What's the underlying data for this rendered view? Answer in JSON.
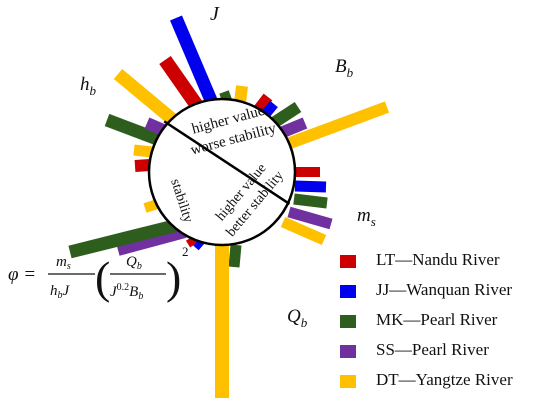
{
  "axes": {
    "J": "J",
    "Bb": "Bb",
    "ms": "ms",
    "Qb": "Qb",
    "hb": "hb"
  },
  "center_text": {
    "upper_line1": "higher value",
    "upper_line2": "worse stability",
    "lower_line1": "higher value",
    "lower_line2": "better stability",
    "left": "stability"
  },
  "formula": {
    "lhs": "φ",
    "numerator": "ms",
    "denominator": "hbJ",
    "inner_numerator": "Qb",
    "inner_denominator": "J0.2Bb",
    "exponent": "2"
  },
  "colors": {
    "LT": "#cc0000",
    "JJ": "#0000ee",
    "MK": "#2e5e1e",
    "SS": "#7030a0",
    "DT": "#ffc000"
  },
  "legend": [
    {
      "key": "LT",
      "label": "LT—Nandu River"
    },
    {
      "key": "JJ",
      "label": "JJ—Wanquan River"
    },
    {
      "key": "MK",
      "label": "MK—Pearl River"
    },
    {
      "key": "SS",
      "label": "SS—Pearl River"
    },
    {
      "key": "DT",
      "label": "DT—Yangtze River"
    }
  ]
}
